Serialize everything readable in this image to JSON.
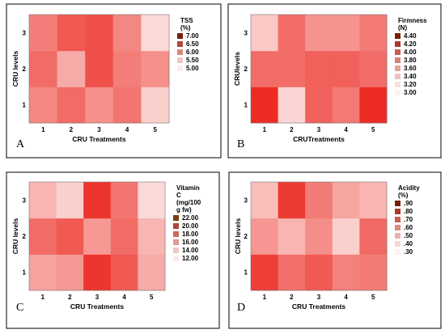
{
  "chart_data": [
    {
      "panel": "A",
      "type": "heatmap",
      "xlabel": "CRU Treatments",
      "ylabel": "CRU levels",
      "x": [
        "1",
        "2",
        "3",
        "4",
        "5"
      ],
      "y": [
        "1",
        "2",
        "3"
      ],
      "legend_title": [
        "TSS",
        "(%)"
      ],
      "legend": [
        {
          "label": "7.00",
          "color": "#7a1f0a"
        },
        {
          "label": "6.50",
          "color": "#b5453a"
        },
        {
          "label": "6.00",
          "color": "#d98a80"
        },
        {
          "label": "5.50",
          "color": "#efc7c2"
        },
        {
          "label": "5.00",
          "color": "#fbeceb"
        }
      ],
      "values": [
        [
          6.0,
          6.3,
          5.9,
          6.2,
          5.2
        ],
        [
          6.3,
          5.6,
          6.6,
          6.1,
          5.9
        ],
        [
          6.1,
          6.5,
          6.6,
          6.0,
          5.1
        ]
      ]
    },
    {
      "panel": "B",
      "type": "heatmap",
      "xlabel": "CRUTreatments",
      "ylabel": "CRUlevels",
      "x": [
        "1",
        "2",
        "3",
        "4",
        "5"
      ],
      "y": [
        "1",
        "2",
        "3"
      ],
      "legend_title": [
        "Firmness",
        "(N)"
      ],
      "legend": [
        {
          "label": "4.40",
          "color": "#7a1f0a"
        },
        {
          "label": "4.20",
          "color": "#a8392c"
        },
        {
          "label": "4.00",
          "color": "#c95d52"
        },
        {
          "label": "3.80",
          "color": "#d98076"
        },
        {
          "label": "3.60",
          "color": "#e6a39b"
        },
        {
          "label": "3.40",
          "color": "#efc2bc"
        },
        {
          "label": "3.20",
          "color": "#f7dfdc"
        },
        {
          "label": "3.00",
          "color": "#fdf2f1"
        }
      ],
      "values": [
        [
          4.4,
          3.1,
          4.0,
          3.8,
          4.4
        ],
        [
          3.9,
          3.9,
          4.0,
          4.0,
          3.9
        ],
        [
          3.2,
          3.9,
          3.6,
          3.6,
          3.8
        ]
      ]
    },
    {
      "panel": "C",
      "type": "heatmap",
      "xlabel": "CRU Treatments",
      "ylabel": "CRU levels",
      "x": [
        "1",
        "2",
        "3",
        "4",
        "5"
      ],
      "y": [
        "1",
        "2",
        "3"
      ],
      "legend_title": [
        "Vitamin",
        "C",
        "(mg/100",
        "g fw)"
      ],
      "legend": [
        {
          "label": "22.00",
          "color": "#7a3d0a"
        },
        {
          "label": "20.00",
          "color": "#a8493a"
        },
        {
          "label": "18.00",
          "color": "#c96a5e"
        },
        {
          "label": "16.00",
          "color": "#e09a90"
        },
        {
          "label": "14.00",
          "color": "#f0c9c3"
        },
        {
          "label": "12.00",
          "color": "#fbeceb"
        }
      ],
      "values": [
        [
          15.5,
          16.0,
          21.5,
          19.5,
          15.0
        ],
        [
          18.5,
          19.5,
          16.0,
          18.5,
          14.5
        ],
        [
          14.5,
          13.0,
          21.5,
          18.0,
          12.5
        ]
      ]
    },
    {
      "panel": "D",
      "type": "heatmap",
      "xlabel": "CRU Treatments",
      "ylabel": "CRU levels",
      "x": [
        "1",
        "2",
        "3",
        "4",
        "5"
      ],
      "y": [
        "1",
        "2",
        "3"
      ],
      "legend_title": [
        "Acidity",
        "(%)"
      ],
      "legend": [
        {
          "label": ".90",
          "color": "#7a1f0a"
        },
        {
          "label": ".80",
          "color": "#a8392c"
        },
        {
          "label": ".70",
          "color": "#c95d52"
        },
        {
          "label": ".60",
          "color": "#dd8a80"
        },
        {
          "label": ".50",
          "color": "#ebb1aa"
        },
        {
          "label": ".40",
          "color": "#f6d8d4"
        },
        {
          "label": ".30",
          "color": "#fdf2f1"
        }
      ],
      "values": [
        [
          0.84,
          0.68,
          0.75,
          0.62,
          0.64
        ],
        [
          0.55,
          0.45,
          0.58,
          0.36,
          0.7
        ],
        [
          0.42,
          0.85,
          0.64,
          0.5,
          0.45
        ]
      ]
    }
  ]
}
